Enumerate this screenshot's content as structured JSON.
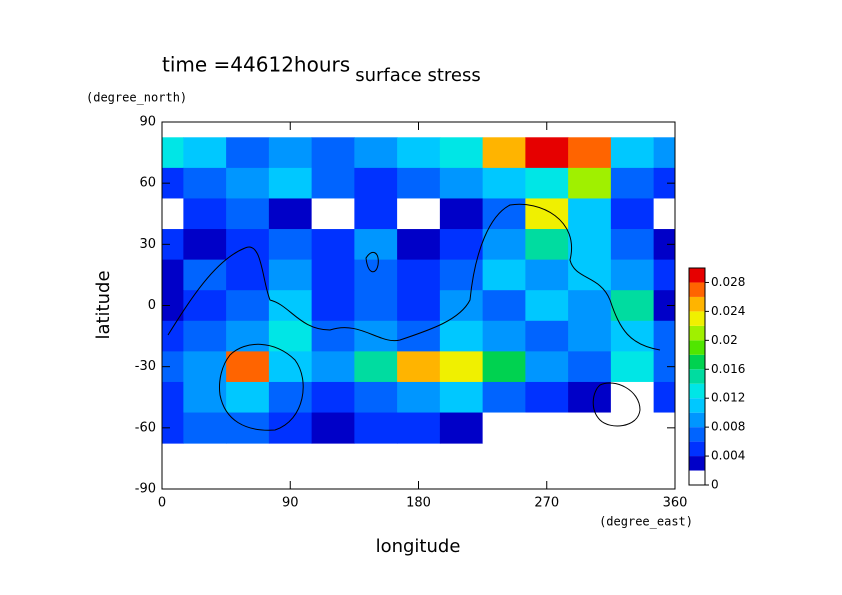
{
  "chart_data": {
    "type": "contour",
    "title": "surface stress",
    "subtitle": "time =44612hours",
    "x_label": "longitude",
    "x_unit": "(degree_east)",
    "y_label": "latitude",
    "y_unit": "(degree_north)",
    "xlim": [
      0,
      360
    ],
    "xticks": [
      0,
      90,
      180,
      270,
      360
    ],
    "ylim": [
      -90,
      90
    ],
    "yticks": [
      -90,
      -60,
      -30,
      0,
      30,
      60,
      90
    ],
    "x": [
      0,
      30,
      60,
      90,
      120,
      150,
      180,
      210,
      240,
      270,
      300,
      330,
      360
    ],
    "y": [
      75,
      60,
      45,
      30,
      15,
      0,
      -15,
      -30,
      -45,
      -60
    ],
    "z": [
      [
        0.012,
        0.01,
        0.006,
        0.008,
        0.006,
        0.008,
        0.01,
        0.012,
        0.024,
        0.028,
        0.026,
        0.01,
        0.008
      ],
      [
        0.004,
        0.006,
        0.008,
        0.01,
        0.006,
        0.004,
        0.006,
        0.008,
        0.01,
        0.012,
        0.02,
        0.006,
        0.004
      ],
      [
        0.001,
        0.004,
        0.006,
        0.003,
        0.001,
        0.004,
        0.001,
        0.002,
        0.006,
        0.022,
        0.01,
        0.004,
        0.001
      ],
      [
        0.004,
        0.003,
        0.004,
        0.006,
        0.004,
        0.008,
        0.002,
        0.004,
        0.008,
        0.014,
        0.01,
        0.006,
        0.003
      ],
      [
        0.003,
        0.006,
        0.004,
        0.008,
        0.004,
        0.006,
        0.004,
        0.006,
        0.01,
        0.008,
        0.01,
        0.008,
        0.004
      ],
      [
        0.002,
        0.004,
        0.006,
        0.01,
        0.004,
        0.006,
        0.004,
        0.008,
        0.006,
        0.01,
        0.008,
        0.014,
        0.003
      ],
      [
        0.004,
        0.006,
        0.008,
        0.012,
        0.006,
        0.008,
        0.006,
        0.01,
        0.008,
        0.006,
        0.008,
        0.01,
        0.006
      ],
      [
        0.006,
        0.008,
        0.026,
        0.01,
        0.008,
        0.014,
        0.024,
        0.022,
        0.016,
        0.008,
        0.006,
        0.012,
        0.006
      ],
      [
        0.004,
        0.008,
        0.01,
        0.006,
        0.004,
        0.006,
        0.008,
        0.01,
        0.006,
        0.004,
        0.003,
        0.001,
        0.004
      ],
      [
        0.004,
        0.006,
        0.006,
        0.004,
        0.003,
        0.004,
        0.004,
        0.003,
        0.001,
        0.001,
        0.001,
        0.001,
        0.001
      ]
    ],
    "levels": [
      0,
      0.002,
      0.004,
      0.006,
      0.008,
      0.01,
      0.012,
      0.014,
      0.016,
      0.018,
      0.02,
      0.022,
      0.024,
      0.026,
      0.028,
      0.03
    ],
    "colors": [
      "#ffffff",
      "#0000c8",
      "#0032ff",
      "#0064ff",
      "#0096ff",
      "#00c8ff",
      "#00e6e6",
      "#00dca0",
      "#00d250",
      "#50e600",
      "#a0f000",
      "#f0f000",
      "#ffb400",
      "#ff6400",
      "#e60000"
    ],
    "cbar_ticks": [
      0,
      0.004,
      0.008,
      0.012,
      0.016,
      0.02,
      0.024,
      0.028
    ]
  }
}
